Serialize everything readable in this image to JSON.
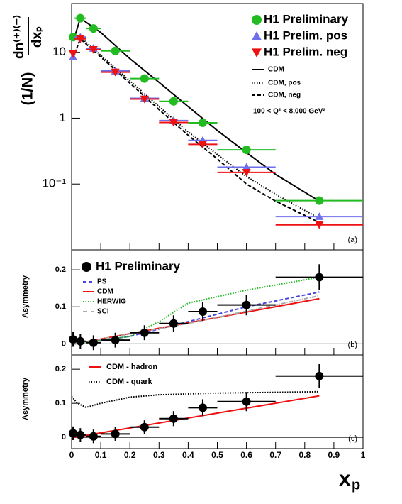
{
  "chart_data": [
    {
      "type": "scatter",
      "log_y": true,
      "xlim": [
        0,
        1
      ],
      "ylim": [
        0.01,
        55
      ],
      "yticks": [
        10,
        1,
        {
          "value": 0.1,
          "label": "10⁻¹"
        }
      ],
      "ylabel": {
        "prefix": "(1/N)",
        "numerator": "dn⁽⁺⁾⁽⁻⁾",
        "denominator": "dxₚ"
      },
      "x": [
        0.005,
        0.03,
        0.075,
        0.15,
        0.25,
        0.35,
        0.45,
        0.6,
        0.85
      ],
      "bin_edges": [
        0,
        0.01,
        0.05,
        0.1,
        0.2,
        0.3,
        0.4,
        0.5,
        0.7,
        1.0
      ],
      "series": [
        {
          "name": "H1 Preliminary",
          "color": "#22bb22",
          "marker": "circle",
          "values": [
            17,
            33,
            23,
            10.5,
            4.0,
            1.8,
            0.85,
            0.33,
            0.056
          ]
        },
        {
          "name": "H1 Prelim. pos",
          "color": "#6f6fee",
          "marker": "triangle-up",
          "values": [
            8.5,
            17,
            11.5,
            5.2,
            2.0,
            0.92,
            0.46,
            0.18,
            0.032
          ]
        },
        {
          "name": "H1 Prelim. neg",
          "color": "#ee1111",
          "marker": "triangle-down",
          "values": [
            9.5,
            16,
            11,
            5.0,
            1.95,
            0.86,
            0.4,
            0.15,
            0.024
          ]
        }
      ],
      "curves": [
        {
          "name": "CDM",
          "color": "#000000",
          "style": "solid",
          "x": [
            0.01,
            0.03,
            0.1,
            0.2,
            0.3,
            0.4,
            0.5,
            0.6,
            0.7,
            0.85
          ],
          "values": [
            17,
            33,
            20,
            8,
            3.5,
            1.5,
            0.65,
            0.3,
            0.14,
            0.055
          ]
        },
        {
          "name": "CDM, pos",
          "color": "#000000",
          "style": "dotted",
          "x": [
            0.01,
            0.03,
            0.1,
            0.2,
            0.3,
            0.4,
            0.5,
            0.6,
            0.7,
            0.85
          ],
          "values": [
            9,
            17,
            9,
            3.7,
            1.5,
            0.62,
            0.28,
            0.13,
            0.07,
            0.03
          ]
        },
        {
          "name": "CDM, neg",
          "color": "#000000",
          "style": "dashed",
          "x": [
            0.01,
            0.03,
            0.1,
            0.2,
            0.3,
            0.4,
            0.5,
            0.6,
            0.7,
            0.85
          ],
          "values": [
            9.5,
            16,
            8.5,
            3.4,
            1.35,
            0.55,
            0.24,
            0.1,
            0.055,
            0.026
          ]
        }
      ],
      "annotation": "100 < Q² < 8,000 GeV²",
      "panel_label": "(a)"
    },
    {
      "type": "scatter",
      "xlim": [
        0,
        1
      ],
      "ylim": [
        -0.03,
        0.254
      ],
      "yticks": [
        0,
        0.1,
        0.2
      ],
      "ylabel": "Asymmetry",
      "x": [
        0.005,
        0.03,
        0.075,
        0.15,
        0.25,
        0.35,
        0.45,
        0.6,
        0.85
      ],
      "bin_edges": [
        0,
        0.01,
        0.05,
        0.1,
        0.2,
        0.3,
        0.4,
        0.5,
        0.7,
        1.0
      ],
      "series": [
        {
          "name": "H1 Preliminary",
          "color": "#000000",
          "marker": "circle",
          "values": [
            0.012,
            0.007,
            0.003,
            0.01,
            0.03,
            0.055,
            0.087,
            0.105,
            0.18
          ],
          "errors": [
            0.02,
            0.02,
            0.02,
            0.02,
            0.02,
            0.022,
            0.025,
            0.028,
            0.035
          ]
        }
      ],
      "curves": [
        {
          "name": "PS",
          "color": "#4444dd",
          "style": "dashed",
          "x": [
            0.01,
            0.2,
            0.4,
            0.6,
            0.85
          ],
          "values": [
            0,
            0.02,
            0.06,
            0.1,
            0.14
          ]
        },
        {
          "name": "CDM",
          "color": "#ee1111",
          "style": "solid",
          "x": [
            0.01,
            0.85
          ],
          "values": [
            0,
            0.122
          ]
        },
        {
          "name": "HERWIG",
          "color": "#22bb22",
          "style": "dotted",
          "x": [
            0.01,
            0.2,
            0.3,
            0.4,
            0.6,
            0.85
          ],
          "values": [
            0,
            0.02,
            0.06,
            0.11,
            0.145,
            0.18
          ]
        },
        {
          "name": "SCI",
          "color": "#aaaaaa",
          "style": "dashdot",
          "x": [
            0.01,
            0.4,
            0.85
          ],
          "values": [
            0,
            0.055,
            0.13
          ]
        }
      ],
      "panel_label": "(b)"
    },
    {
      "type": "scatter",
      "xlim": [
        0,
        1
      ],
      "ylim": [
        -0.033,
        0.242
      ],
      "yticks": [
        0,
        0.1,
        0.2
      ],
      "xticks": [
        0,
        0.1,
        0.2,
        0.3,
        0.4,
        0.5,
        0.6,
        0.7,
        0.8,
        0.9,
        1
      ],
      "ylabel": "Asymmetry",
      "xlabel": {
        "main": "x",
        "sub": "p"
      },
      "x": [
        0.005,
        0.03,
        0.075,
        0.15,
        0.25,
        0.35,
        0.45,
        0.6,
        0.85
      ],
      "bin_edges": [
        0,
        0.01,
        0.05,
        0.1,
        0.2,
        0.3,
        0.4,
        0.5,
        0.7,
        1.0
      ],
      "series": [
        {
          "color": "#000000",
          "marker": "circle",
          "values": [
            0.012,
            0.007,
            0.003,
            0.01,
            0.03,
            0.055,
            0.087,
            0.105,
            0.18
          ],
          "errors": [
            0.02,
            0.02,
            0.02,
            0.02,
            0.02,
            0.022,
            0.025,
            0.028,
            0.035
          ]
        }
      ],
      "curves": [
        {
          "name": "CDM - hadron",
          "color": "#ee1111",
          "style": "solid",
          "x": [
            0.01,
            0.85
          ],
          "values": [
            0,
            0.122
          ]
        },
        {
          "name": "CDM - quark",
          "color": "#000000",
          "style": "dotted",
          "x": [
            0.0,
            0.02,
            0.05,
            0.1,
            0.2,
            0.3,
            0.5,
            0.85
          ],
          "values": [
            0.12,
            0.1,
            0.088,
            0.1,
            0.118,
            0.125,
            0.13,
            0.134
          ]
        }
      ],
      "panel_label": "(c)"
    }
  ]
}
